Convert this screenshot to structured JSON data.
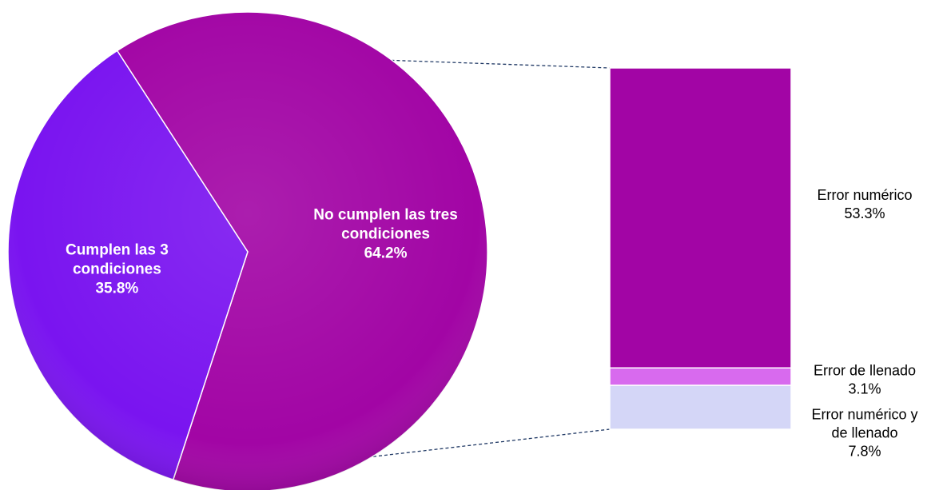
{
  "chart_data": {
    "type": "bar-of-pie",
    "pie": {
      "slices": [
        {
          "label": "No cumplen las tres condiciones",
          "label_lines": [
            "No cumplen las tres",
            "condiciones"
          ],
          "value": 64.2,
          "value_label": "64.2%",
          "color": "#A205A5"
        },
        {
          "label": "Cumplen las 3 condiciones",
          "label_lines": [
            "Cumplen las 3",
            "condiciones"
          ],
          "value": 35.8,
          "value_label": "35.8%",
          "color": "#7A14F0"
        }
      ]
    },
    "stacked_bar": {
      "segments": [
        {
          "label": "Error numérico",
          "label_lines": [
            "Error numérico"
          ],
          "value": 53.3,
          "value_label": "53.3%",
          "color": "#A205A5"
        },
        {
          "label": "Error de llenado",
          "label_lines": [
            "Error de llenado"
          ],
          "value": 3.1,
          "value_label": "3.1%",
          "color": "#D86AEE"
        },
        {
          "label": "Error numérico y de llenado",
          "label_lines": [
            "Error numérico y",
            "de llenado"
          ],
          "value": 7.8,
          "value_label": "7.8%",
          "color": "#D4D6F7"
        }
      ]
    }
  }
}
